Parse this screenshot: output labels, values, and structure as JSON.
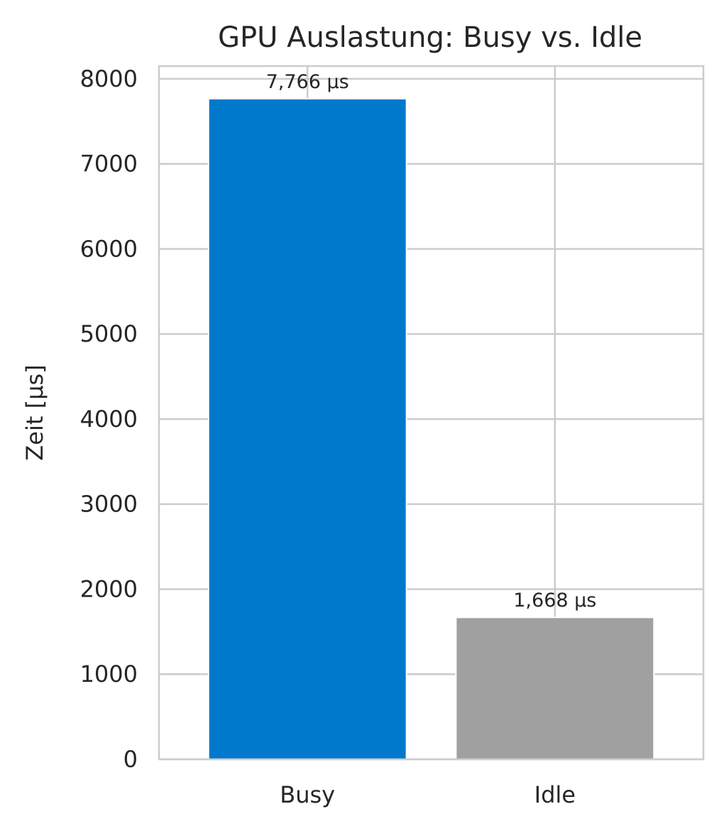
{
  "chart_data": {
    "type": "bar",
    "title": "GPU Auslastung: Busy vs. Idle",
    "xlabel": "",
    "ylabel": "Zeit [µs]",
    "categories": [
      "Busy",
      "Idle"
    ],
    "values": [
      7766,
      1668
    ],
    "data_labels": [
      "7,766 µs",
      "1,668 µs"
    ],
    "colors": [
      "#0079cc",
      "#a0a0a0"
    ],
    "ylim": [
      0,
      8150
    ],
    "yticks": [
      0,
      1000,
      2000,
      3000,
      4000,
      5000,
      6000,
      7000,
      8000
    ],
    "grid": true,
    "legend": "none"
  }
}
